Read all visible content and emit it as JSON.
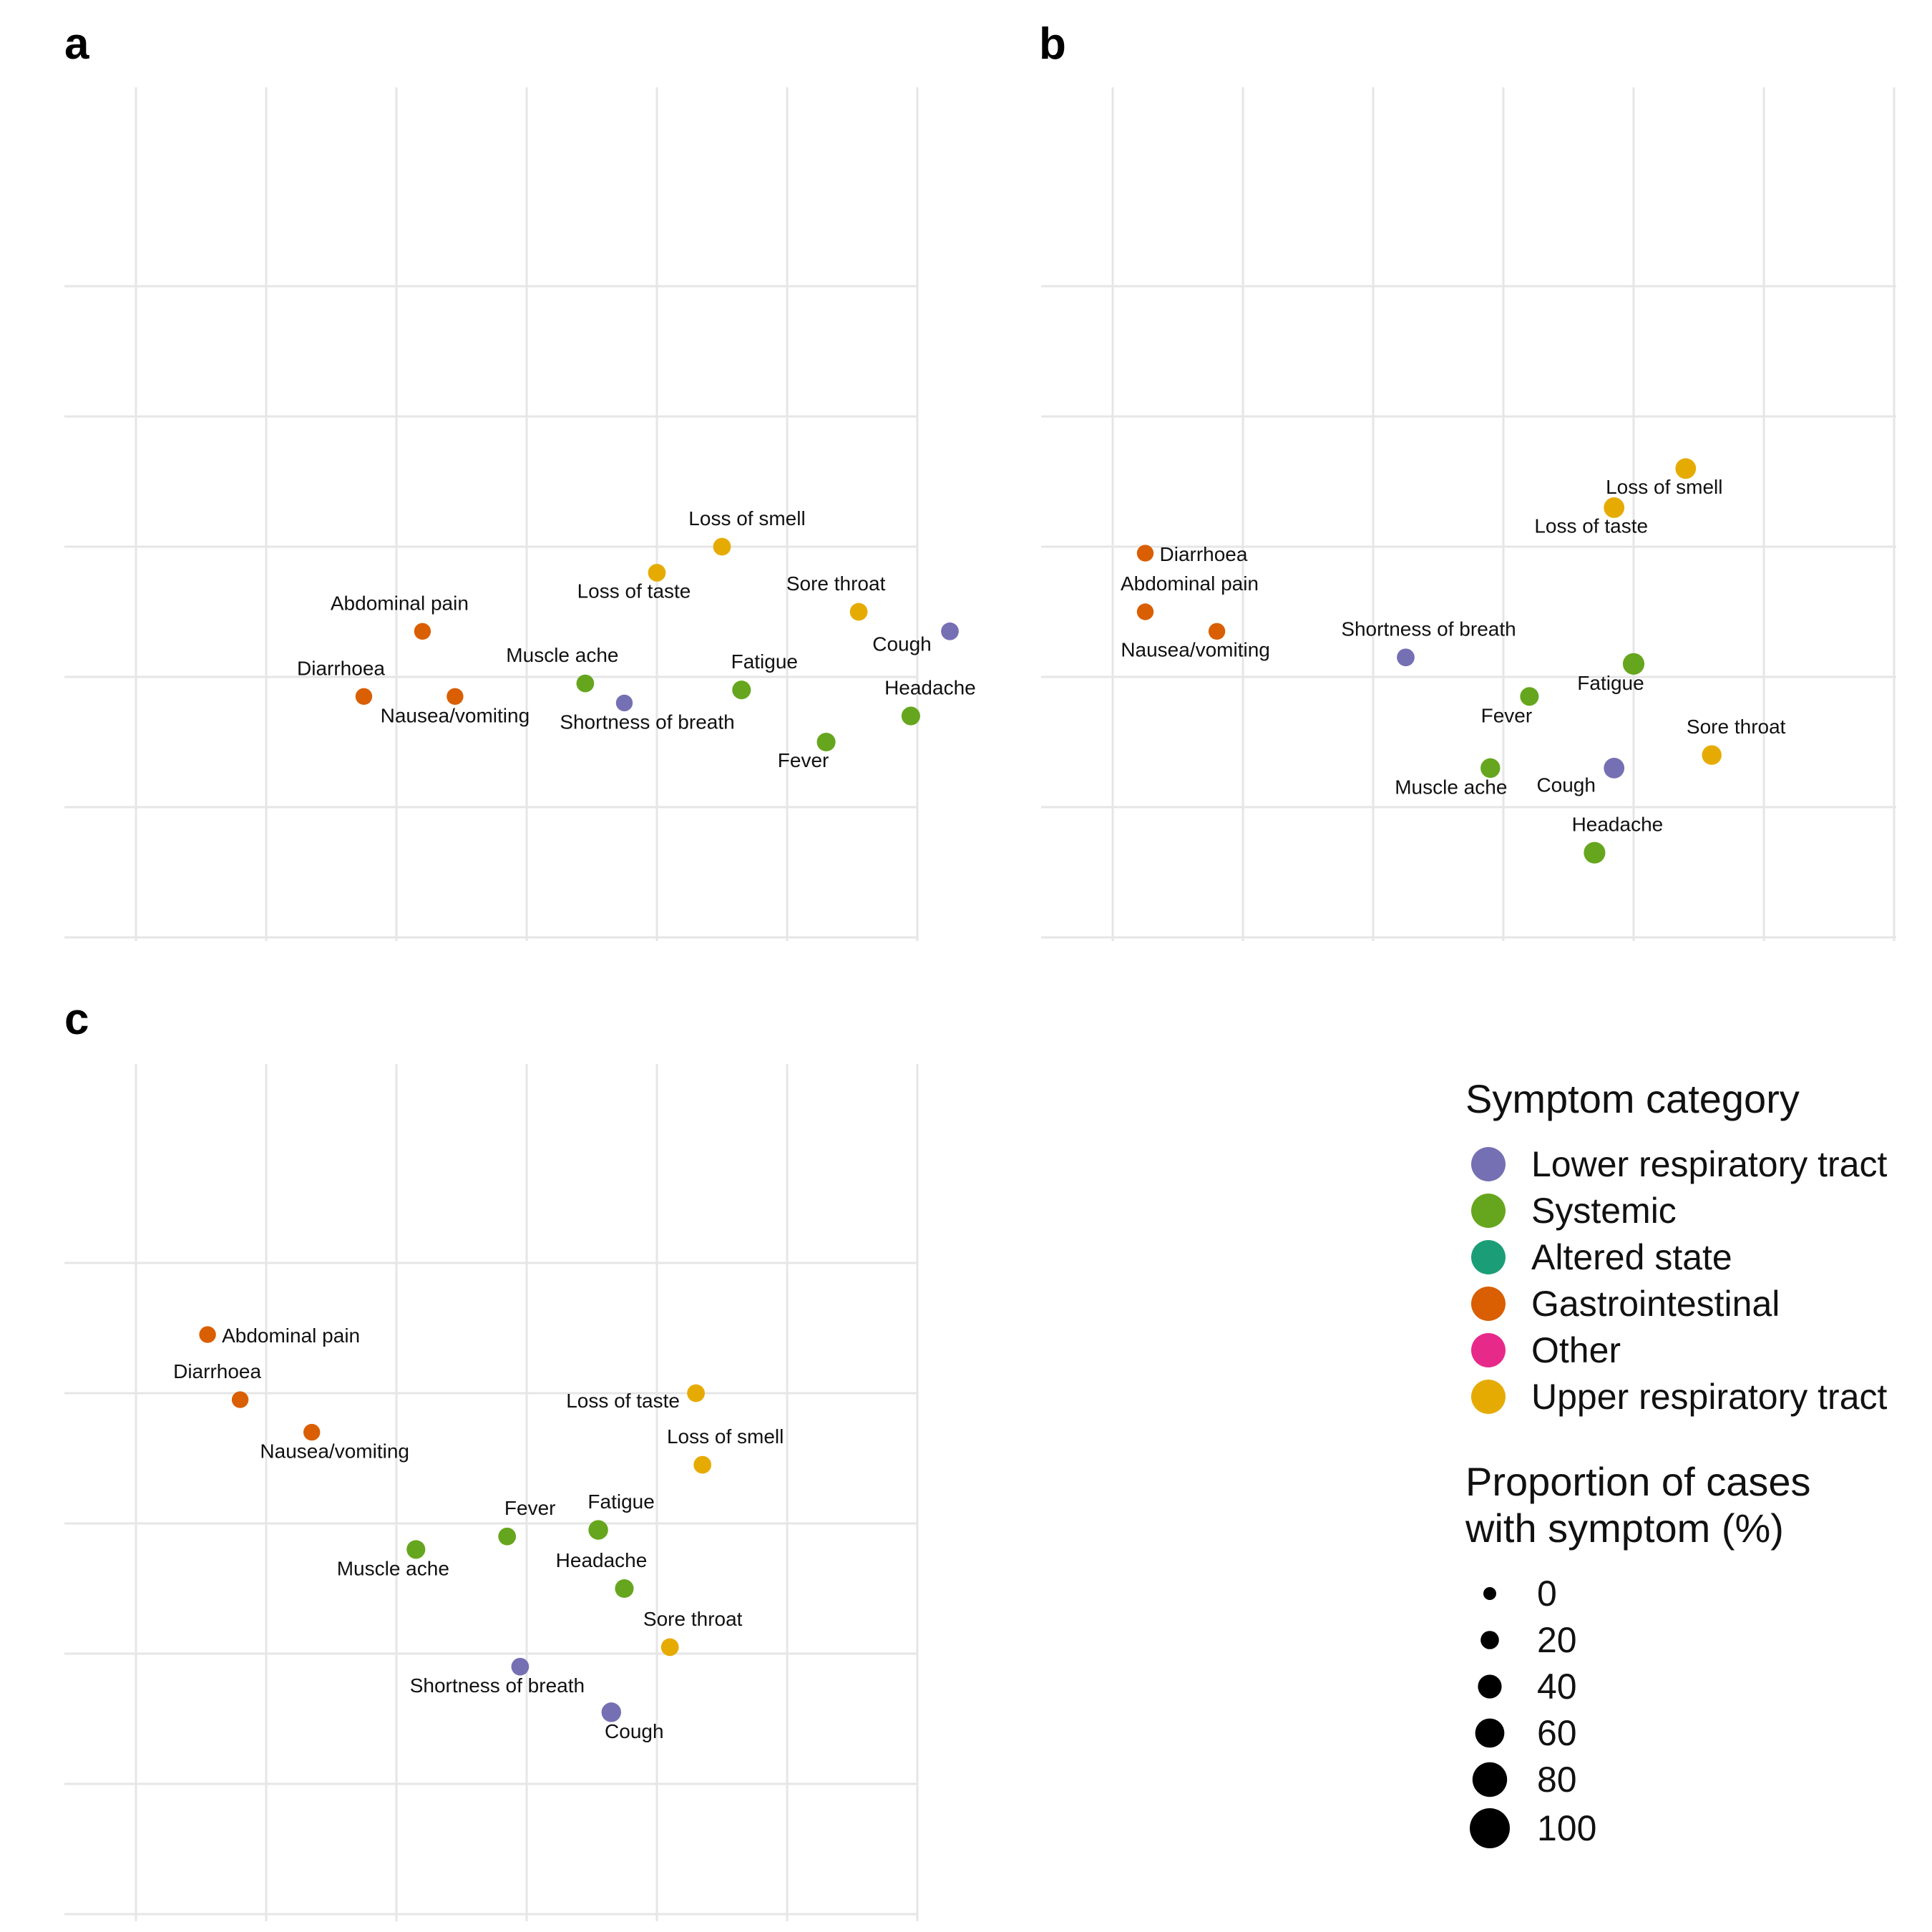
{
  "palette": {
    "Lower respiratory tract": "#7570b3",
    "Systemic": "#66a61e",
    "Altered state": "#1b9e77",
    "Gastrointestinal": "#d95f02",
    "Other": "#e7298a",
    "Upper respiratory tract": "#e6ab02"
  },
  "chart_data": [
    {
      "panel": "a",
      "type": "scatter",
      "grid": true,
      "points": [
        {
          "label": "Loss of smell",
          "category": "Upper respiratory tract",
          "x": 4.5,
          "y": 3.0,
          "size": 25
        },
        {
          "label": "Loss of taste",
          "category": "Upper respiratory tract",
          "x": 4.0,
          "y": 2.8,
          "size": 25
        },
        {
          "label": "Sore throat",
          "category": "Upper respiratory tract",
          "x": 5.55,
          "y": 2.5,
          "size": 25
        },
        {
          "label": "Cough",
          "category": "Lower respiratory tract",
          "x": 6.25,
          "y": 2.35,
          "size": 25
        },
        {
          "label": "Abdominal pain",
          "category": "Gastrointestinal",
          "x": 2.2,
          "y": 2.35,
          "size": 20
        },
        {
          "label": "Diarrhoea",
          "category": "Gastrointestinal",
          "x": 1.75,
          "y": 1.85,
          "size": 20
        },
        {
          "label": "Nausea/vomiting",
          "category": "Gastrointestinal",
          "x": 2.45,
          "y": 1.85,
          "size": 20
        },
        {
          "label": "Muscle ache",
          "category": "Systemic",
          "x": 3.45,
          "y": 1.95,
          "size": 25
        },
        {
          "label": "Shortness of breath",
          "category": "Lower respiratory tract",
          "x": 3.75,
          "y": 1.8,
          "size": 20
        },
        {
          "label": "Fatigue",
          "category": "Systemic",
          "x": 4.65,
          "y": 1.9,
          "size": 30
        },
        {
          "label": "Headache",
          "category": "Systemic",
          "x": 5.95,
          "y": 1.7,
          "size": 30
        },
        {
          "label": "Fever",
          "category": "Systemic",
          "x": 5.3,
          "y": 1.5,
          "size": 30
        }
      ]
    },
    {
      "panel": "b",
      "type": "scatter",
      "grid": true,
      "points": [
        {
          "label": "Loss of smell",
          "category": "Upper respiratory tract",
          "x": 4.4,
          "y": 3.6,
          "size": 40
        },
        {
          "label": "Loss of taste",
          "category": "Upper respiratory tract",
          "x": 3.85,
          "y": 3.3,
          "size": 40
        },
        {
          "label": "Diarrhoea",
          "category": "Gastrointestinal",
          "x": 0.25,
          "y": 2.95,
          "size": 20
        },
        {
          "label": "Abdominal pain",
          "category": "Gastrointestinal",
          "x": 0.25,
          "y": 2.5,
          "size": 20
        },
        {
          "label": "Nausea/vomiting",
          "category": "Gastrointestinal",
          "x": 0.8,
          "y": 2.35,
          "size": 20
        },
        {
          "label": "Shortness of breath",
          "category": "Lower respiratory tract",
          "x": 2.25,
          "y": 2.15,
          "size": 25
        },
        {
          "label": "Fatigue",
          "category": "Systemic",
          "x": 4.0,
          "y": 2.1,
          "size": 45
        },
        {
          "label": "Fever",
          "category": "Systemic",
          "x": 3.2,
          "y": 1.85,
          "size": 30
        },
        {
          "label": "Sore throat",
          "category": "Upper respiratory tract",
          "x": 4.6,
          "y": 1.4,
          "size": 35
        },
        {
          "label": "Muscle ache",
          "category": "Systemic",
          "x": 2.9,
          "y": 1.3,
          "size": 35
        },
        {
          "label": "Cough",
          "category": "Lower respiratory tract",
          "x": 3.85,
          "y": 1.3,
          "size": 40
        },
        {
          "label": "Headache",
          "category": "Systemic",
          "x": 3.7,
          "y": 0.65,
          "size": 45
        }
      ]
    },
    {
      "panel": "c",
      "type": "scatter",
      "grid": true,
      "points": [
        {
          "label": "Abdominal pain",
          "category": "Gastrointestinal",
          "x": 0.55,
          "y": 4.45,
          "size": 20
        },
        {
          "label": "Diarrhoea",
          "category": "Gastrointestinal",
          "x": 0.8,
          "y": 3.95,
          "size": 20
        },
        {
          "label": "Nausea/vomiting",
          "category": "Gastrointestinal",
          "x": 1.35,
          "y": 3.7,
          "size": 20
        },
        {
          "label": "Loss of taste",
          "category": "Upper respiratory tract",
          "x": 4.3,
          "y": 4.0,
          "size": 25
        },
        {
          "label": "Loss of smell",
          "category": "Upper respiratory tract",
          "x": 4.35,
          "y": 3.45,
          "size": 25
        },
        {
          "label": "Fatigue",
          "category": "Systemic",
          "x": 3.55,
          "y": 2.95,
          "size": 35
        },
        {
          "label": "Fever",
          "category": "Systemic",
          "x": 2.85,
          "y": 2.9,
          "size": 25
        },
        {
          "label": "Muscle ache",
          "category": "Systemic",
          "x": 2.15,
          "y": 2.8,
          "size": 30
        },
        {
          "label": "Headache",
          "category": "Systemic",
          "x": 3.75,
          "y": 2.5,
          "size": 30
        },
        {
          "label": "Sore throat",
          "category": "Upper respiratory tract",
          "x": 4.1,
          "y": 2.05,
          "size": 25
        },
        {
          "label": "Shortness of breath",
          "category": "Lower respiratory tract",
          "x": 2.95,
          "y": 1.9,
          "size": 25
        },
        {
          "label": "Cough",
          "category": "Lower respiratory tract",
          "x": 3.65,
          "y": 1.55,
          "size": 35
        }
      ]
    }
  ],
  "legend": {
    "category_title": "Symptom category",
    "categories": [
      "Lower respiratory tract",
      "Systemic",
      "Altered state",
      "Gastrointestinal",
      "Other",
      "Upper respiratory tract"
    ],
    "size_title_line1": "Proportion of cases",
    "size_title_line2": "with symptom (%)",
    "sizes": [
      0,
      20,
      40,
      60,
      80,
      100
    ]
  }
}
